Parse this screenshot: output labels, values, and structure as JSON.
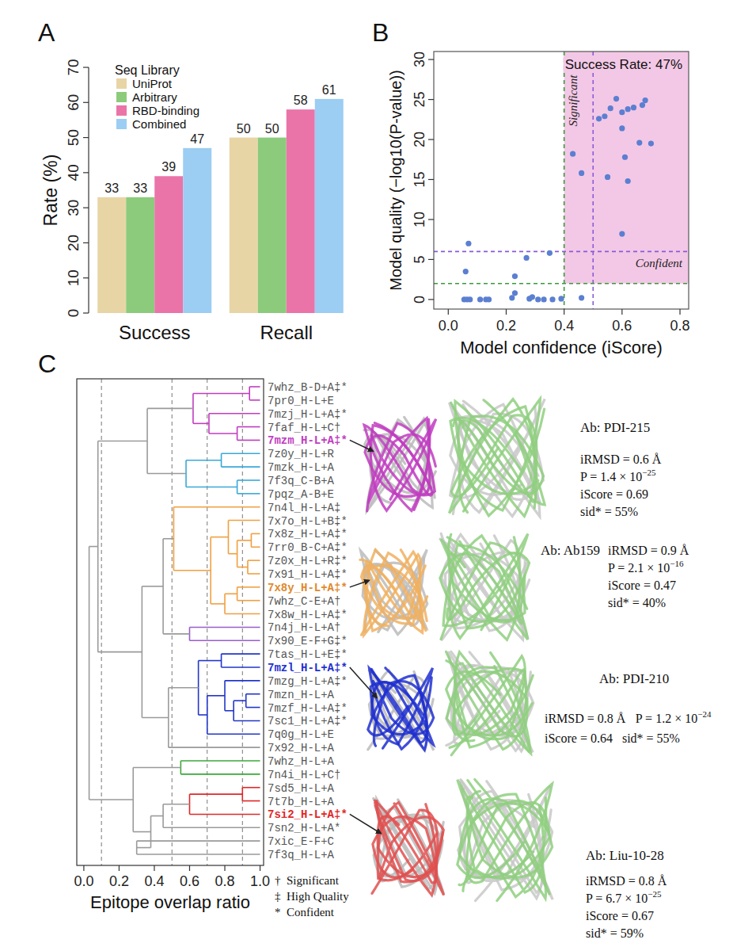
{
  "chart_data": [
    {
      "panel": "A",
      "type": "bar",
      "categories": [
        "Success",
        "Recall"
      ],
      "series": [
        {
          "name": "UniProt",
          "color": "#e8d5a6",
          "values": [
            33,
            50
          ]
        },
        {
          "name": "Arbitrary",
          "color": "#8ccb7c",
          "values": [
            33,
            50
          ]
        },
        {
          "name": "RBD-binding",
          "color": "#ea74a8",
          "values": [
            39,
            58
          ]
        },
        {
          "name": "Combined",
          "color": "#9ccdf2",
          "values": [
            47,
            61
          ]
        }
      ],
      "y_label": "Rate (%)",
      "ylim": [
        0,
        70
      ],
      "yticks": [
        0,
        10,
        20,
        30,
        40,
        50,
        60,
        70
      ],
      "legend": "upper left",
      "legend_title": "Seq Library",
      "data_labels": true,
      "grid": false
    },
    {
      "panel": "B",
      "type": "scatter",
      "color": "#5b7fd1",
      "x": [
        0.055,
        0.065,
        0.075,
        0.11,
        0.13,
        0.14,
        0.22,
        0.23,
        0.28,
        0.29,
        0.31,
        0.33,
        0.36,
        0.39,
        0.46,
        0.06,
        0.07,
        0.23,
        0.27,
        0.35,
        0.43,
        0.46,
        0.52,
        0.54,
        0.55,
        0.56,
        0.58,
        0.6,
        0.6,
        0.61,
        0.6,
        0.62,
        0.62,
        0.64,
        0.66,
        0.67,
        0.68,
        0.7
      ],
      "values": [
        0,
        0,
        0,
        0,
        0,
        0,
        0.2,
        0.8,
        0.1,
        0.3,
        0,
        0,
        0,
        0.1,
        0.2,
        3.5,
        7.0,
        2.9,
        5.2,
        5.8,
        18.2,
        15.8,
        22.6,
        22.9,
        15.3,
        23.9,
        25.1,
        21.4,
        23.4,
        17.8,
        8.2,
        23.8,
        14.8,
        24.0,
        19.6,
        24.3,
        24.9,
        19.5
      ],
      "x_label": "Model confidence (iScore)",
      "y_label": "Model quality (−log10(P-value))",
      "xlim": [
        -0.05,
        0.83
      ],
      "xticks": [
        {
          "value": 0,
          "label": "0.0"
        },
        0.2,
        0.4,
        0.6,
        0.8
      ],
      "ylim": [
        -1.2,
        31
      ],
      "yticks": [
        0,
        5,
        10,
        15,
        20,
        25,
        30
      ],
      "grid": false,
      "highlight_region": {
        "x_from": 0.4,
        "y_from": 2,
        "color": "#f3c8e6",
        "label": "Success Rate: 47%"
      },
      "reference_lines": [
        {
          "axis": "x",
          "value": 0.4,
          "color": "#3a9a3a",
          "label": "Significant"
        },
        {
          "axis": "x",
          "value": 0.5,
          "color": "#8a5ad8"
        },
        {
          "axis": "y",
          "value": 2,
          "color": "#3a9a3a"
        },
        {
          "axis": "y",
          "value": 6,
          "color": "#8a5ad8",
          "label": "Confident"
        }
      ]
    },
    {
      "panel": "C",
      "type": "dendrogram",
      "x_label": "Epitope overlap ratio",
      "xlim": [
        -0.04,
        1.02
      ],
      "xticks": [
        {
          "value": 0,
          "label": "0.0"
        },
        0.2,
        0.4,
        0.6,
        0.8,
        {
          "value": 1,
          "label": "1.0"
        }
      ],
      "cut_lines": [
        0.1,
        0.5,
        0.7,
        0.9
      ],
      "leaf_height": 1,
      "leaves": [
        {
          "label": "7whz_B-D+A‡*"
        },
        {
          "label": "7pr0_H-L+E"
        },
        {
          "label": "7mzj_H-L+A‡*"
        },
        {
          "label": "7faf_H-L+C†"
        },
        {
          "label": "7mzm_H-L+A‡*",
          "color": "#c03cc0"
        },
        {
          "label": "7z0y_H-L+R"
        },
        {
          "label": "7mzk_H-L+A"
        },
        {
          "label": "7f3q_C-B+A"
        },
        {
          "label": "7pqz_A-B+E"
        },
        {
          "label": "7n4l_H-L+A‡"
        },
        {
          "label": "7x7o_H-L+B‡*"
        },
        {
          "label": "7x8z_H-L+A‡*"
        },
        {
          "label": "7rr0_B-C+A‡*"
        },
        {
          "label": "7z0x_H-L+R‡*"
        },
        {
          "label": "7x91_H-L+A‡*"
        },
        {
          "label": "7x8y_H-L+A‡*",
          "color": "#e0892c"
        },
        {
          "label": "7whz_C-E+A†"
        },
        {
          "label": "7x8w_H-L+A‡*"
        },
        {
          "label": "7n4j_H-L+A†"
        },
        {
          "label": "7x90_E-F+G‡*"
        },
        {
          "label": "7tas_H-L+E‡*"
        },
        {
          "label": "7mzl_H-L+A‡*",
          "color": "#1f2fd0"
        },
        {
          "label": "7mzg_H-L+A‡*"
        },
        {
          "label": "7mzn_H-L+A"
        },
        {
          "label": "7mzf_H-L+A‡*"
        },
        {
          "label": "7sc1_H-L+A‡*"
        },
        {
          "label": "7q0g_H-L+E"
        },
        {
          "label": "7x92_H-L+A"
        },
        {
          "label": "7whz_H-L+A"
        },
        {
          "label": "7n4i_H-L+C†"
        },
        {
          "label": "7sd5_H-L+A"
        },
        {
          "label": "7t7b_H-L+A"
        },
        {
          "label": "7si2_H-L+A‡*",
          "color": "#e02828"
        },
        {
          "label": "7sn2_H-L+A*"
        },
        {
          "label": "7xic_E-F+C"
        },
        {
          "label": "7f3q_H-L+A"
        }
      ],
      "merges": [
        [
          0,
          1,
          0.94
        ],
        [
          3,
          4,
          0.87
        ],
        [
          2,
          37,
          0.71
        ],
        [
          36,
          38,
          0.62
        ],
        [
          5,
          6,
          0.78
        ],
        [
          7,
          8,
          0.87
        ],
        [
          40,
          41,
          0.58
        ],
        [
          39,
          42,
          0.36
        ],
        [
          11,
          12,
          0.95
        ],
        [
          13,
          14,
          0.93
        ],
        [
          44,
          45,
          0.87
        ],
        [
          10,
          46,
          0.82
        ],
        [
          15,
          16,
          0.87
        ],
        [
          48,
          17,
          0.8
        ],
        [
          47,
          49,
          0.72
        ],
        [
          9,
          50,
          0.51
        ],
        [
          18,
          19,
          0.6
        ],
        [
          51,
          52,
          0.45
        ],
        [
          20,
          21,
          0.78
        ],
        [
          23,
          24,
          0.92
        ],
        [
          55,
          25,
          0.85
        ],
        [
          22,
          56,
          0.8
        ],
        [
          57,
          26,
          0.7
        ],
        [
          54,
          58,
          0.65
        ],
        [
          59,
          27,
          0.48
        ],
        [
          53,
          60,
          0.33
        ],
        [
          43,
          61,
          0.08
        ],
        [
          28,
          29,
          0.55
        ],
        [
          30,
          31,
          0.9
        ],
        [
          64,
          32,
          0.6
        ],
        [
          65,
          33,
          0.45
        ],
        [
          34,
          35,
          0.3
        ],
        [
          66,
          67,
          0.38
        ],
        [
          63,
          68,
          0.28
        ],
        [
          62,
          69,
          0.03
        ]
      ],
      "merge_colors": [
        "#c03cc0",
        "#c03cc0",
        "#c03cc0",
        "#c03cc0",
        "#3aa8d8",
        "#3aa8d8",
        "#3aa8d8",
        "#9a9a9a",
        "#f0a040",
        "#f0a040",
        "#f0a040",
        "#f0a040",
        "#f0a040",
        "#f0a040",
        "#f0a040",
        "#f0a040",
        "#9a5ccc",
        "#9a9a9a",
        "#2236c8",
        "#2236c8",
        "#2236c8",
        "#2236c8",
        "#2236c8",
        "#2236c8",
        "#9a9a9a",
        "#9a9a9a",
        "#9a9a9a",
        "#3aa83a",
        "#e02828",
        "#e02828",
        "#9a9a9a",
        "#9a9a9a",
        "#9a9a9a",
        "#9a9a9a",
        "#9a9a9a"
      ],
      "legend_entries": [
        {
          "symbol": "†",
          "label": "Significant"
        },
        {
          "symbol": "‡",
          "label": "High Quality"
        },
        {
          "symbol": "*",
          "label": "Confident"
        }
      ],
      "structures": [
        {
          "leaf": 4,
          "color": "#c03cc0",
          "antibody": "Ab: PDI-215",
          "irmsd": "iRMSD = 0.6 Å",
          "p_value": "P = 1.4 × 10",
          "p_exponent": "−25",
          "iscore": "iScore = 0.69",
          "sid": "sid* = 55%"
        },
        {
          "leaf": 15,
          "color": "#f0b060",
          "antibody": "Ab: Ab159",
          "irmsd": "iRMSD = 0.9 Å",
          "p_value": "P = 2.1 × 10",
          "p_exponent": "−16",
          "iscore": "iScore = 0.47",
          "sid": "sid* = 40%"
        },
        {
          "leaf": 21,
          "color": "#1f2fd0",
          "antibody": "Ab: PDI-210",
          "irmsd": "iRMSD = 0.8 Å",
          "p_value": "P = 1.2 × 10",
          "p_exponent": "−24",
          "iscore": "iScore = 0.64",
          "sid": "sid* = 55%"
        },
        {
          "leaf": 32,
          "color": "#e05050",
          "antibody": "Ab: Liu-10-28",
          "irmsd": "iRMSD = 0.8 Å",
          "p_value": "P = 6.7 × 10",
          "p_exponent": "−25",
          "iscore": "iScore = 0.67",
          "sid": "sid* = 59%"
        }
      ]
    }
  ]
}
